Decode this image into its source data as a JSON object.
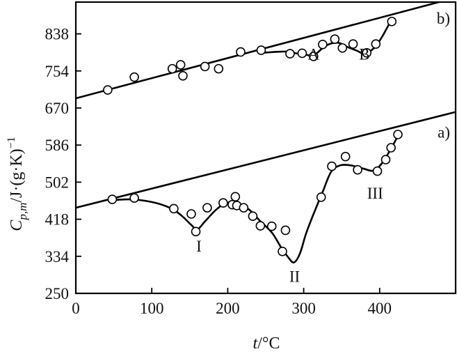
{
  "chart_data": {
    "type": "scatter",
    "title": "",
    "xlabel": {
      "var": "t",
      "unit": "/°C"
    },
    "ylabel": {
      "var": "C",
      "sub": "p,m",
      "unit": "/J·(g·K)",
      "exp": "−1"
    },
    "xlim": [
      0,
      500
    ],
    "ylim": [
      250,
      910
    ],
    "x_ticks": [
      0,
      100,
      200,
      300,
      400
    ],
    "y_ticks": [
      250,
      334,
      418,
      502,
      586,
      670,
      754,
      838
    ],
    "grid": false,
    "legend": "none",
    "colors": {
      "line": "#000000",
      "marker_fill": "#ffffff",
      "marker_edge": "#000000"
    },
    "series": [
      {
        "label": "b)",
        "baseline": [
          [
            0,
            692
          ],
          [
            500,
            920
          ]
        ],
        "curve": [
          [
            245,
            795
          ],
          [
            275,
            798
          ],
          [
            290,
            794
          ],
          [
            305,
            790
          ],
          [
            312,
            786
          ],
          [
            318,
            795
          ],
          [
            330,
            812
          ],
          [
            345,
            818
          ],
          [
            358,
            808
          ],
          [
            370,
            800
          ],
          [
            380,
            793
          ],
          [
            392,
            805
          ],
          [
            402,
            828
          ],
          [
            413,
            862
          ]
        ],
        "points": [
          [
            42,
            711
          ],
          [
            77,
            740
          ],
          [
            127,
            759
          ],
          [
            138,
            768
          ],
          [
            141,
            743
          ],
          [
            170,
            764
          ],
          [
            188,
            759
          ],
          [
            217,
            797
          ],
          [
            244,
            801
          ],
          [
            282,
            793
          ],
          [
            298,
            794
          ],
          [
            313,
            787
          ],
          [
            325,
            814
          ],
          [
            341,
            826
          ],
          [
            351,
            806
          ],
          [
            365,
            815
          ],
          [
            383,
            795
          ],
          [
            395,
            815
          ],
          [
            416,
            866
          ]
        ],
        "annotations": [
          {
            "text": "A",
            "x": 313,
            "y": 780
          },
          {
            "text": "B",
            "x": 380,
            "y": 780
          }
        ]
      },
      {
        "label": "a)",
        "baseline": [
          [
            0,
            444
          ],
          [
            500,
            661
          ]
        ],
        "curve": [
          [
            42,
            460
          ],
          [
            70,
            463
          ],
          [
            100,
            457
          ],
          [
            125,
            443
          ],
          [
            140,
            425
          ],
          [
            152,
            405
          ],
          [
            160,
            395
          ],
          [
            170,
            413
          ],
          [
            185,
            440
          ],
          [
            198,
            455
          ],
          [
            212,
            454
          ],
          [
            228,
            440
          ],
          [
            242,
            415
          ],
          [
            258,
            388
          ],
          [
            270,
            355
          ],
          [
            279,
            333
          ],
          [
            287,
            320
          ],
          [
            295,
            340
          ],
          [
            303,
            385
          ],
          [
            313,
            430
          ],
          [
            325,
            480
          ],
          [
            336,
            525
          ],
          [
            348,
            540
          ],
          [
            362,
            540
          ],
          [
            378,
            533
          ],
          [
            392,
            528
          ],
          [
            403,
            545
          ],
          [
            414,
            575
          ],
          [
            425,
            610
          ]
        ],
        "points": [
          [
            48,
            463
          ],
          [
            77,
            466
          ],
          [
            129,
            442
          ],
          [
            152,
            430
          ],
          [
            158,
            390
          ],
          [
            173,
            444
          ],
          [
            194,
            455
          ],
          [
            206,
            451
          ],
          [
            210,
            469
          ],
          [
            212,
            449
          ],
          [
            221,
            444
          ],
          [
            233,
            425
          ],
          [
            243,
            403
          ],
          [
            258,
            402
          ],
          [
            272,
            345
          ],
          [
            276,
            393
          ],
          [
            323,
            468
          ],
          [
            337,
            538
          ],
          [
            355,
            560
          ],
          [
            371,
            530
          ],
          [
            397,
            527
          ],
          [
            408,
            553
          ],
          [
            415,
            580
          ],
          [
            424,
            610
          ]
        ],
        "annotations": [
          {
            "text": "I",
            "x": 162,
            "y": 345
          },
          {
            "text": "II",
            "x": 288,
            "y": 276
          },
          {
            "text": "III",
            "x": 394,
            "y": 465
          }
        ]
      }
    ]
  }
}
